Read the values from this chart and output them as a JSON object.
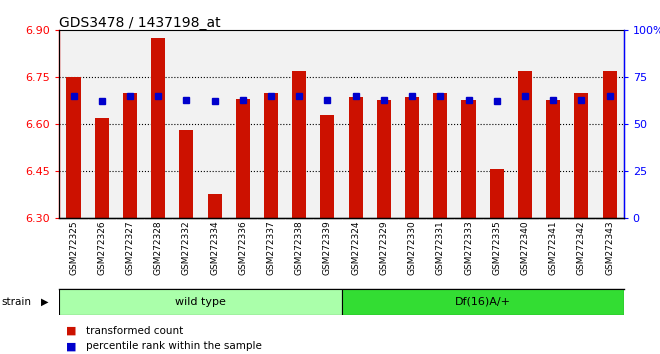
{
  "title": "GDS3478 / 1437198_at",
  "samples": [
    "GSM272325",
    "GSM272326",
    "GSM272327",
    "GSM272328",
    "GSM272332",
    "GSM272334",
    "GSM272336",
    "GSM272337",
    "GSM272338",
    "GSM272339",
    "GSM272324",
    "GSM272329",
    "GSM272330",
    "GSM272331",
    "GSM272333",
    "GSM272335",
    "GSM272340",
    "GSM272341",
    "GSM272342",
    "GSM272343"
  ],
  "red_values": [
    6.75,
    6.62,
    6.7,
    6.875,
    6.58,
    6.375,
    6.68,
    6.7,
    6.77,
    6.63,
    6.685,
    6.675,
    6.685,
    6.7,
    6.675,
    6.455,
    6.77,
    6.675,
    6.7,
    6.77
  ],
  "blue_values": [
    65,
    62,
    65,
    65,
    63,
    62,
    63,
    65,
    65,
    63,
    65,
    63,
    65,
    65,
    63,
    62,
    65,
    63,
    63,
    65
  ],
  "wt_count": 10,
  "df_count": 10,
  "groups": [
    {
      "label": "wild type",
      "color": "#AAFFAA"
    },
    {
      "label": "Df(16)A/+",
      "color": "#33DD33"
    }
  ],
  "ylim_left": [
    6.3,
    6.9
  ],
  "ylim_right": [
    0,
    100
  ],
  "yticks_left": [
    6.3,
    6.45,
    6.6,
    6.75,
    6.9
  ],
  "yticks_right": [
    0,
    25,
    50,
    75,
    100
  ],
  "yticks_right_labels": [
    "0",
    "25",
    "50",
    "75",
    "100%"
  ],
  "grid_values": [
    6.45,
    6.6,
    6.75
  ],
  "bar_color": "#CC1100",
  "blue_color": "#0000CC",
  "bar_bottom": 6.3,
  "bar_width": 0.5,
  "legend_red": "transformed count",
  "legend_blue": "percentile rank within the sample",
  "strain_label": "strain",
  "tick_bg_color": "#CCCCCC",
  "plot_bg_color": "#F2F2F2",
  "white": "#FFFFFF"
}
